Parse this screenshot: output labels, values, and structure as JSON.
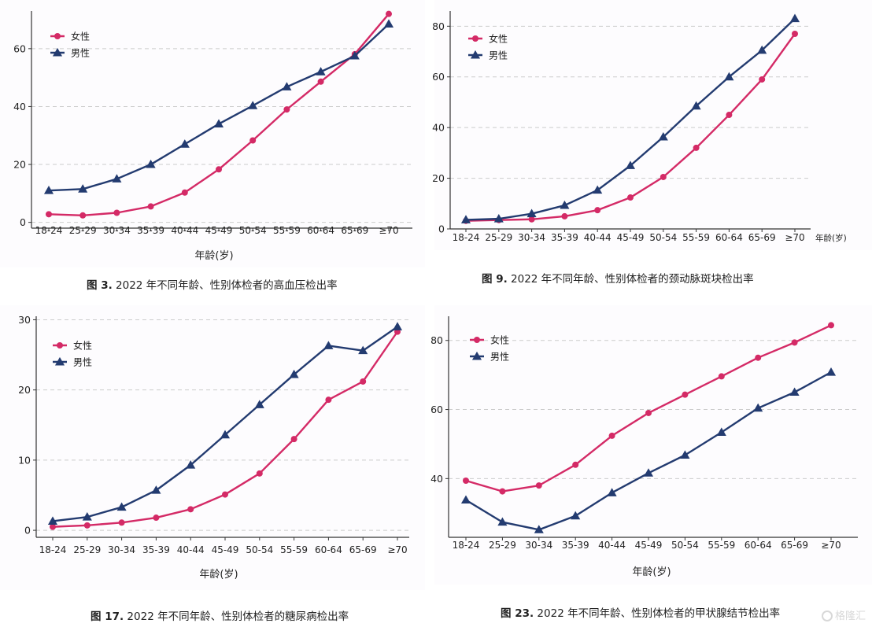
{
  "colors": {
    "female": "#d42a66",
    "male": "#233b70",
    "grid": "#cccccc",
    "axis": "#333333"
  },
  "watermark": "格隆汇",
  "panels": [
    {
      "caption_fig": "图 3.",
      "caption_text": "2022 年不同年龄、性别体检者的高血压检出率",
      "chart_data": {
        "type": "line",
        "categories": [
          "18-24",
          "25-29",
          "30-34",
          "35-39",
          "40-44",
          "45-49",
          "50-54",
          "55-59",
          "60-64",
          "65-69",
          "≥70"
        ],
        "series": [
          {
            "name": "女性",
            "marker": "circle",
            "values": [
              2.8,
              2.4,
              3.3,
              5.5,
              10.3,
              18.3,
              28.3,
              39.0,
              48.6,
              58.1,
              72.0
            ]
          },
          {
            "name": "男性",
            "marker": "triangle",
            "values": [
              11.0,
              11.5,
              15.0,
              20.0,
              27.0,
              34.0,
              40.3,
              46.8,
              52.0,
              57.5,
              68.5
            ]
          }
        ],
        "yticks": [
          0,
          20,
          40,
          60
        ],
        "ylim": [
          -2,
          73
        ],
        "xlabel": "年龄(岁)",
        "ylabel": "",
        "legend": "top-left",
        "grid": "horizontal dashed"
      }
    },
    {
      "caption_fig": "图 9.",
      "caption_text": "2022 年不同年龄、性别体检者的颈动脉斑块检出率",
      "chart_data": {
        "type": "line",
        "categories": [
          "18-24",
          "25-29",
          "30-34",
          "35-39",
          "40-44",
          "45-49",
          "50-54",
          "55-59",
          "60-64",
          "65-69",
          "≥70"
        ],
        "series": [
          {
            "name": "女性",
            "marker": "circle",
            "values": [
              3.2,
              3.5,
              3.8,
              5.0,
              7.4,
              12.4,
              20.5,
              32.0,
              45.0,
              59.0,
              77.0
            ]
          },
          {
            "name": "男性",
            "marker": "triangle",
            "values": [
              3.6,
              4.0,
              6.0,
              9.3,
              15.3,
              25.0,
              36.3,
              48.5,
              60.0,
              70.5,
              83.0
            ]
          }
        ],
        "yticks": [
          0,
          20,
          40,
          60,
          80
        ],
        "ylim": [
          0,
          86
        ],
        "xlabel": "年龄(岁)",
        "ylabel": "",
        "legend": "top-left",
        "grid": "horizontal dashed"
      }
    },
    {
      "caption_fig": "图 17.",
      "caption_text": "2022 年不同年龄、性别体检者的糖尿病检出率",
      "chart_data": {
        "type": "line",
        "categories": [
          "18-24",
          "25-29",
          "30-34",
          "35-39",
          "40-44",
          "45-49",
          "50-54",
          "55-59",
          "60-64",
          "65-69",
          "≥70"
        ],
        "series": [
          {
            "name": "女性",
            "marker": "circle",
            "values": [
              0.5,
              0.7,
              1.1,
              1.8,
              3.0,
              5.1,
              8.1,
              13.0,
              18.6,
              21.2,
              28.3
            ]
          },
          {
            "name": "男性",
            "marker": "triangle",
            "values": [
              1.3,
              1.9,
              3.3,
              5.7,
              9.3,
              13.6,
              17.9,
              22.2,
              26.3,
              25.6,
              29.0
            ]
          }
        ],
        "yticks": [
          0,
          10,
          20,
          30
        ],
        "ylim": [
          -1,
          30.5
        ],
        "xlabel": "年龄(岁)",
        "ylabel": "",
        "legend": "top-left",
        "grid": "horizontal dashed"
      }
    },
    {
      "caption_fig": "图 23.",
      "caption_text": "2022 年不同年龄、性别体检者的甲状腺结节检出率",
      "chart_data": {
        "type": "line",
        "categories": [
          "18-24",
          "25-29",
          "30-34",
          "35-39",
          "40-44",
          "45-49",
          "50-54",
          "55-59",
          "60-64",
          "65-69",
          "≥70"
        ],
        "series": [
          {
            "name": "女性",
            "marker": "circle",
            "values": [
              39.4,
              36.3,
              38.0,
              44.0,
              52.4,
              59.0,
              64.3,
              69.6,
              75.0,
              79.4,
              84.4
            ]
          },
          {
            "name": "男性",
            "marker": "triangle",
            "values": [
              33.8,
              27.4,
              25.2,
              29.2,
              35.9,
              41.6,
              46.8,
              53.4,
              60.4,
              65.0,
              70.8
            ]
          }
        ],
        "yticks": [
          40,
          60,
          80
        ],
        "ylim": [
          23,
          87
        ],
        "xlabel": "年龄(岁)",
        "ylabel": "",
        "legend": "top-left",
        "grid": "horizontal dashed"
      }
    }
  ]
}
